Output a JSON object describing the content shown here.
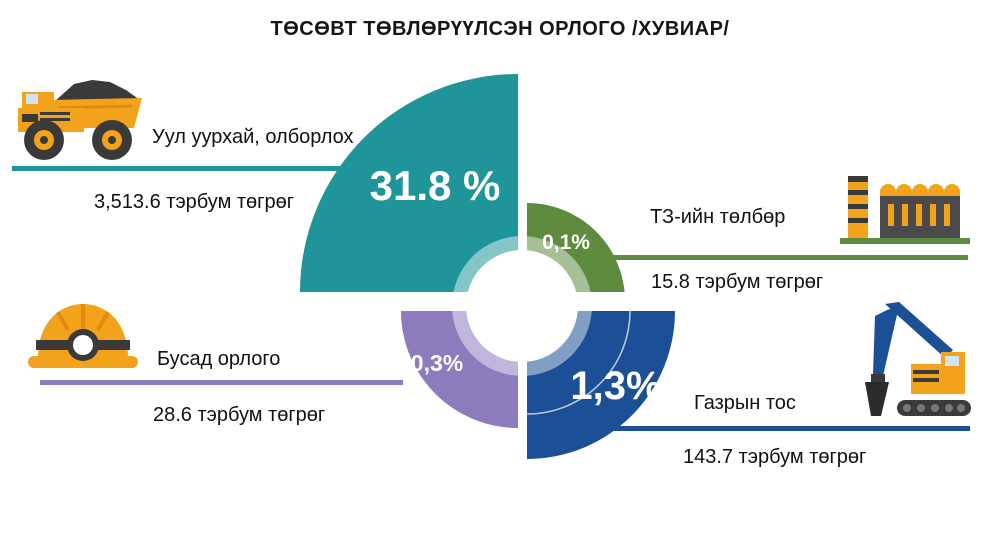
{
  "chart_data": {
    "type": "pie",
    "title": "ТӨСӨВТ ТӨВЛӨРҮҮЛСЭН ОРЛОГО /ХУВИАР/",
    "slices": [
      {
        "name": "Уул уурхай, олборлох",
        "percent_label": "31.8 %",
        "value_label": "3,513.6 тэрбум төгрөг",
        "value": 3513.6,
        "unit": "тэрбум төгрөг",
        "color": "#1f9599"
      },
      {
        "name": "ТЗ-ийн төлбөр",
        "percent_label": "0,1%",
        "value_label": "15.8 тэрбум төгрөг",
        "value": 15.8,
        "unit": "тэрбум төгрөг",
        "color": "#5e8b3e"
      },
      {
        "name": "Газрын тос",
        "percent_label": "1,3%",
        "value_label": "143.7 тэрбум төгрөг",
        "value": 143.7,
        "unit": "тэрбум төгрөг",
        "color": "#1b4f96"
      },
      {
        "name": "Бусад орлого",
        "percent_label": "0,3%",
        "value_label": "28.6 тэрбум төгрөг",
        "value": 28.6,
        "unit": "тэрбум төгрөг",
        "color": "#8c7bbd"
      }
    ]
  },
  "icons": [
    "mining-truck-icon",
    "factory-icon",
    "excavator-icon",
    "miner-helmet-icon"
  ]
}
